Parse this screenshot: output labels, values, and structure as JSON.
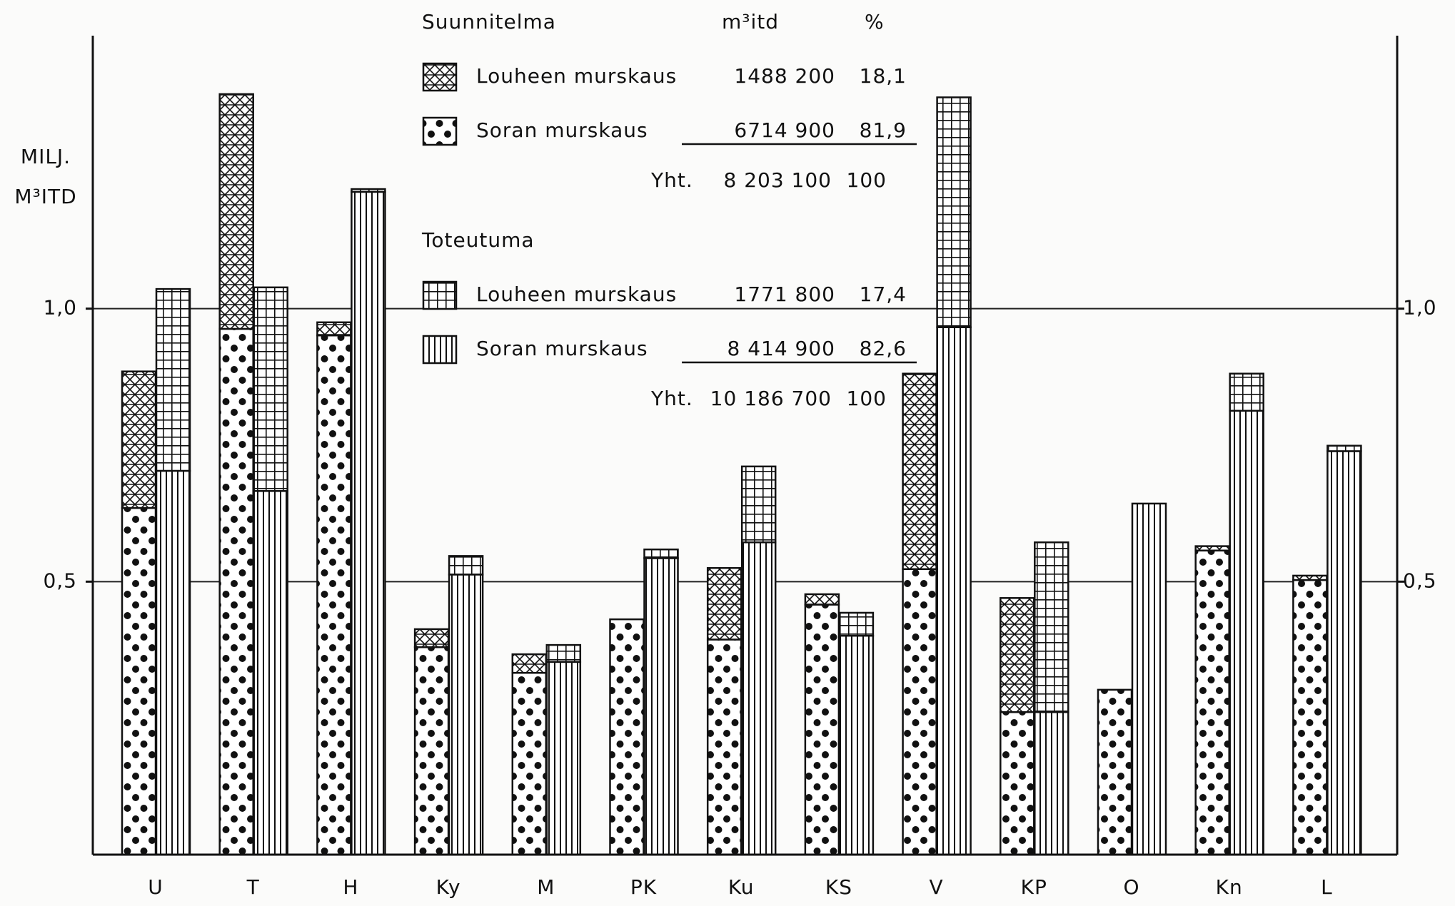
{
  "chart_data": {
    "type": "bar",
    "y_label": [
      "MILJ.",
      "M³ITD"
    ],
    "categories": [
      "U",
      "T",
      "H",
      "Ky",
      "M",
      "PK",
      "Ku",
      "KS",
      "V",
      "KP",
      "O",
      "Kn",
      "L"
    ],
    "ylim": [
      0,
      1.5
    ],
    "yticks": [
      {
        "value": 0.5,
        "label": "0,5"
      },
      {
        "value": 1.0,
        "label": "1,0"
      }
    ],
    "grid": true,
    "legend_header": {
      "amount": "m³itd",
      "percent": "%"
    },
    "groups": [
      {
        "title": "Suunnitelma",
        "series": [
          {
            "name": "Louheen murskaus",
            "pattern": "crosshatch",
            "amount": {
              "value": 1488200,
              "label": "1488 200"
            },
            "percent": {
              "value": 18.1,
              "label": "18,1"
            },
            "values": [
              0.25,
              0.43,
              0.024,
              0.033,
              0.034,
              0,
              0.131,
              0.019,
              0.358,
              0.209,
              0,
              0.008,
              0.008
            ]
          },
          {
            "name": "Soran murskaus",
            "pattern": "dots",
            "amount": {
              "value": 6714900,
              "label": "6714 900"
            },
            "percent": {
              "value": 81.9,
              "label": "81,9"
            },
            "values": [
              0.635,
              0.963,
              0.951,
              0.38,
              0.333,
              0.431,
              0.394,
              0.458,
              0.523,
              0.261,
              0.302,
              0.557,
              0.503
            ]
          }
        ],
        "total": {
          "label": "Yht.",
          "amount": {
            "value": 8203100,
            "label": "8 203 100"
          },
          "percent": 100
        }
      },
      {
        "title": "Toteutuma",
        "series": [
          {
            "name": "Louheen murskaus",
            "pattern": "grid",
            "amount": {
              "value": 1771800,
              "label": "1771 800"
            },
            "percent": {
              "value": 17.4,
              "label": "17,4"
            },
            "values": [
              0.333,
              0.373,
              0.005,
              0.034,
              0.031,
              0.016,
              0.139,
              0.042,
              0.421,
              0.311,
              0,
              0.068,
              0.01
            ]
          },
          {
            "name": "Soran murskaus",
            "pattern": "vlines",
            "amount": {
              "value": 8414900,
              "label": "8 414 900"
            },
            "percent": {
              "value": 82.6,
              "label": "82,6"
            },
            "values": [
              0.703,
              0.666,
              1.214,
              0.513,
              0.353,
              0.543,
              0.572,
              0.401,
              0.966,
              0.261,
              0.643,
              0.813,
              0.739
            ]
          }
        ],
        "total": {
          "label": "Yht.",
          "amount": {
            "value": 10186700,
            "label": "10 186 700"
          },
          "percent": 100
        }
      }
    ]
  }
}
